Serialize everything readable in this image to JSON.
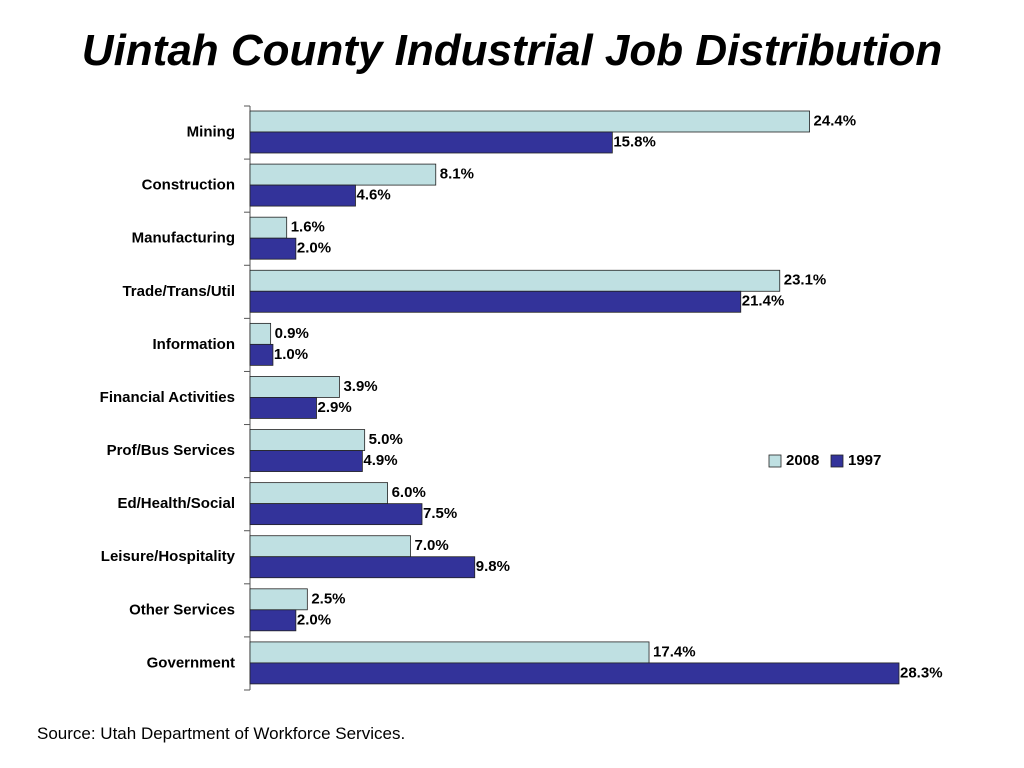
{
  "title": "Uintah County Industrial Job Distribution",
  "source": "Source: Utah Department of Workforce Services.",
  "colors": {
    "s2008": "#bfe0e2",
    "s1997": "#33339a",
    "axis": "#555555",
    "bar_stroke": "#222222"
  },
  "chart_data": {
    "type": "bar",
    "orientation": "horizontal",
    "title": "Uintah County Industrial Job Distribution",
    "categories": [
      "Mining",
      "Construction",
      "Manufacturing",
      "Trade/Trans/Util",
      "Information",
      "Financial Activities",
      "Prof/Bus Services",
      "Ed/Health/Social",
      "Leisure/Hospitality",
      "Other Services",
      "Government"
    ],
    "series": [
      {
        "name": "2008",
        "values": [
          24.4,
          8.1,
          1.6,
          23.1,
          0.9,
          3.9,
          5.0,
          6.0,
          7.0,
          2.5,
          17.4
        ],
        "labels": [
          "24.4%",
          "8.1%",
          "1.6%",
          "23.1%",
          "0.9%",
          "3.9%",
          "5.0%",
          "6.0%",
          "7.0%",
          "2.5%",
          "17.4%"
        ]
      },
      {
        "name": "1997",
        "values": [
          15.8,
          4.6,
          2.0,
          21.4,
          1.0,
          2.9,
          4.9,
          7.5,
          9.8,
          2.0,
          28.3
        ],
        "labels": [
          "15.8%",
          "4.6%",
          "2.0%",
          "21.4%",
          "1.0%",
          "2.9%",
          "4.9%",
          "7.5%",
          "9.8%",
          "2.0%",
          "28.3%"
        ]
      }
    ],
    "xlim": [
      0,
      28.3
    ],
    "grid": false,
    "legend": "right"
  }
}
